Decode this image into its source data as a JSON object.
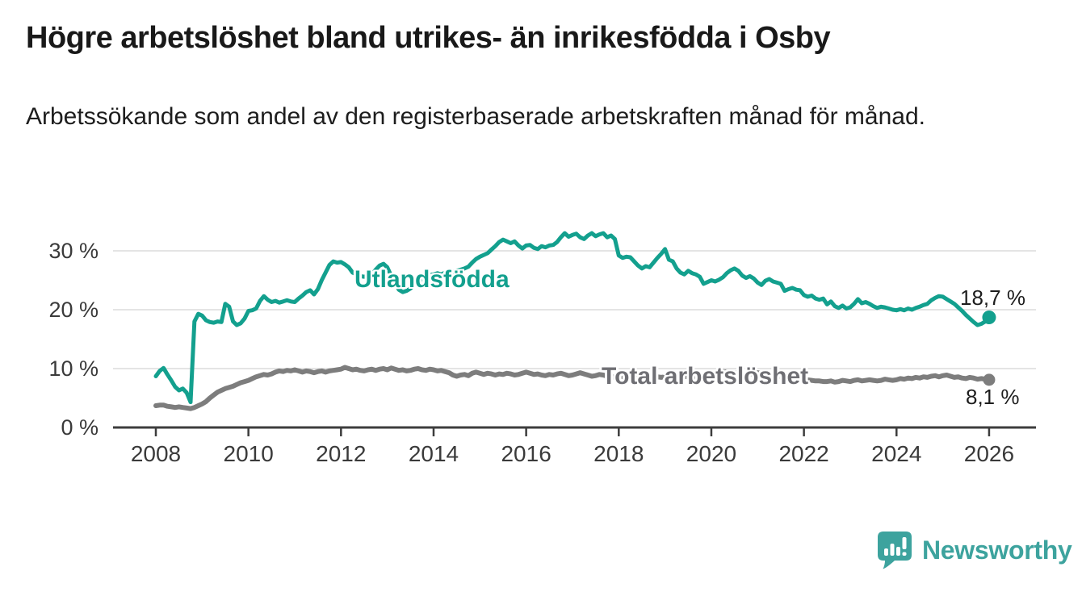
{
  "header": {
    "title": "Högre arbetslöshet bland utrikes- än inrikesfödda i Osby",
    "subtitle": "Arbetssökande som andel av den registerbaserade arbetskraften månad för månad."
  },
  "chart_data": {
    "type": "line",
    "title": "Högre arbetslöshet bland utrikes- än inrikesfödda i Osby",
    "subtitle": "Arbetssökande som andel av den registerbaserade arbetskraften månad för månad.",
    "x_start_year": 2008,
    "points_per_year": 12,
    "xlim": [
      2008,
      2026.1
    ],
    "ylim": [
      0,
      34
    ],
    "grid": "horizontal",
    "grid_color": "#DBDBDB",
    "axis_color": "#3D3D3D",
    "tick_label_color": "#3A3A3A",
    "x_ticks": [
      {
        "value": 2008,
        "label": "2008"
      },
      {
        "value": 2010,
        "label": "2010"
      },
      {
        "value": 2012,
        "label": "2012"
      },
      {
        "value": 2014,
        "label": "2014"
      },
      {
        "value": 2016,
        "label": "2016"
      },
      {
        "value": 2018,
        "label": "2018"
      },
      {
        "value": 2020,
        "label": "2020"
      },
      {
        "value": 2022,
        "label": "2022"
      },
      {
        "value": 2024,
        "label": "2024"
      },
      {
        "value": 2026,
        "label": "2026"
      }
    ],
    "y_ticks": [
      {
        "value": 0,
        "label": "0 %"
      },
      {
        "value": 10,
        "label": "10 %"
      },
      {
        "value": 20,
        "label": "20 %"
      },
      {
        "value": 30,
        "label": "30 %"
      }
    ],
    "series": [
      {
        "name": "Utlandsfödda",
        "color": "#13A08E",
        "end_label": "18,7 %",
        "end_value": 18.7,
        "values": [
          8.7,
          9.6,
          10.1,
          9.0,
          8.0,
          6.9,
          6.3,
          6.6,
          5.9,
          4.3,
          18.0,
          19.3,
          19.0,
          18.2,
          17.9,
          17.8,
          18.0,
          17.9,
          21.0,
          20.5,
          18.0,
          17.4,
          17.7,
          18.5,
          19.8,
          19.9,
          20.2,
          21.5,
          22.3,
          21.7,
          21.3,
          21.5,
          21.2,
          21.4,
          21.6,
          21.4,
          21.3,
          21.9,
          22.4,
          23.0,
          23.3,
          22.6,
          23.5,
          25.0,
          26.3,
          27.6,
          28.2,
          28.0,
          28.1,
          27.7,
          27.2,
          26.3,
          26.0,
          25.7,
          25.6,
          25.8,
          26.0,
          26.8,
          27.5,
          27.8,
          27.2,
          25.8,
          24.5,
          23.4,
          23.0,
          23.2,
          23.6,
          24.2,
          24.8,
          25.2,
          25.6,
          25.9,
          26.0,
          26.2,
          26.0,
          26.3,
          26.5,
          26.4,
          26.6,
          26.8,
          27.0,
          27.3,
          28.0,
          28.6,
          29.0,
          29.3,
          29.6,
          30.2,
          30.8,
          31.5,
          31.9,
          31.6,
          31.3,
          31.6,
          30.9,
          30.4,
          30.9,
          31.0,
          30.5,
          30.3,
          30.8,
          30.6,
          30.9,
          31.0,
          31.5,
          32.3,
          33.0,
          32.4,
          32.7,
          32.9,
          32.3,
          32.0,
          32.6,
          33.0,
          32.5,
          32.8,
          33.0,
          32.3,
          32.6,
          32.0,
          29.2,
          28.8,
          29.0,
          28.9,
          28.2,
          27.5,
          27.0,
          27.4,
          27.2,
          28.0,
          28.8,
          29.5,
          30.3,
          28.5,
          28.2,
          27.0,
          26.3,
          26.0,
          26.6,
          26.2,
          26.0,
          25.6,
          24.4,
          24.7,
          25.0,
          24.8,
          25.1,
          25.5,
          26.2,
          26.7,
          27.0,
          26.6,
          25.8,
          25.4,
          25.7,
          25.3,
          24.6,
          24.2,
          24.9,
          25.2,
          24.8,
          24.6,
          24.4,
          23.2,
          23.5,
          23.7,
          23.4,
          23.3,
          22.5,
          22.2,
          22.4,
          21.9,
          21.7,
          21.9,
          20.9,
          21.4,
          20.6,
          20.3,
          20.7,
          20.2,
          20.4,
          21.0,
          21.8,
          21.1,
          21.3,
          21.0,
          20.6,
          20.3,
          20.5,
          20.4,
          20.2,
          20.0,
          19.9,
          20.1,
          19.9,
          20.2,
          20.0,
          20.3,
          20.5,
          20.8,
          21.0,
          21.6,
          22.0,
          22.3,
          22.2,
          21.8,
          21.4,
          21.0,
          20.4,
          19.8,
          19.1,
          18.5,
          17.9,
          17.4,
          17.6,
          18.0,
          18.7
        ]
      },
      {
        "name": "Total arbetslöshet",
        "color": "#7D7D7D",
        "end_label": "8,1 %",
        "end_value": 8.1,
        "values": [
          3.7,
          3.8,
          3.8,
          3.6,
          3.5,
          3.4,
          3.5,
          3.4,
          3.3,
          3.2,
          3.4,
          3.7,
          4.0,
          4.4,
          5.0,
          5.5,
          6.0,
          6.3,
          6.6,
          6.8,
          7.0,
          7.3,
          7.6,
          7.8,
          8.0,
          8.3,
          8.6,
          8.8,
          9.0,
          8.9,
          9.1,
          9.4,
          9.6,
          9.5,
          9.7,
          9.6,
          9.8,
          9.6,
          9.4,
          9.6,
          9.5,
          9.3,
          9.5,
          9.6,
          9.4,
          9.6,
          9.7,
          9.8,
          9.9,
          10.2,
          10.0,
          9.8,
          9.9,
          9.7,
          9.6,
          9.8,
          9.9,
          9.7,
          9.9,
          10.0,
          9.8,
          10.1,
          9.9,
          9.7,
          9.8,
          9.6,
          9.7,
          9.9,
          10.0,
          9.8,
          9.7,
          9.9,
          9.8,
          9.6,
          9.7,
          9.5,
          9.3,
          8.9,
          8.7,
          8.9,
          9.0,
          8.8,
          9.2,
          9.4,
          9.2,
          9.0,
          9.2,
          9.1,
          8.9,
          9.1,
          9.0,
          9.2,
          9.1,
          8.9,
          9.0,
          9.2,
          9.4,
          9.2,
          9.0,
          9.1,
          8.9,
          8.8,
          9.0,
          8.9,
          9.1,
          9.2,
          9.0,
          8.8,
          8.9,
          9.1,
          9.3,
          9.1,
          8.9,
          8.7,
          8.8,
          9.0,
          8.9,
          8.7,
          8.5,
          8.6,
          8.8,
          8.6,
          8.5,
          8.6,
          8.4,
          8.3,
          8.4,
          8.5,
          8.3,
          8.4,
          8.6,
          8.5,
          8.6,
          8.4,
          8.5,
          8.3,
          8.4,
          8.6,
          8.7,
          8.5,
          8.6,
          8.7,
          8.8,
          8.9,
          9.0,
          9.1,
          9.4,
          9.5,
          9.4,
          9.3,
          9.2,
          9.3,
          9.1,
          9.0,
          9.1,
          9.2,
          9.3,
          9.2,
          9.0,
          8.9,
          8.8,
          8.7,
          8.6,
          8.5,
          8.4,
          8.3,
          8.2,
          8.3,
          8.2,
          8.1,
          8.0,
          7.9,
          7.9,
          7.8,
          7.8,
          7.9,
          7.7,
          7.8,
          8.0,
          7.9,
          7.8,
          8.0,
          8.1,
          7.9,
          8.0,
          8.1,
          8.0,
          7.9,
          8.0,
          8.2,
          8.1,
          8.0,
          8.1,
          8.3,
          8.2,
          8.4,
          8.3,
          8.5,
          8.4,
          8.6,
          8.5,
          8.7,
          8.8,
          8.6,
          8.8,
          8.9,
          8.7,
          8.5,
          8.6,
          8.4,
          8.3,
          8.5,
          8.4,
          8.2,
          8.3,
          8.2,
          8.1
        ]
      }
    ]
  },
  "footer": {
    "brand": "Newsworthy",
    "brand_color": "#3DA39E"
  }
}
